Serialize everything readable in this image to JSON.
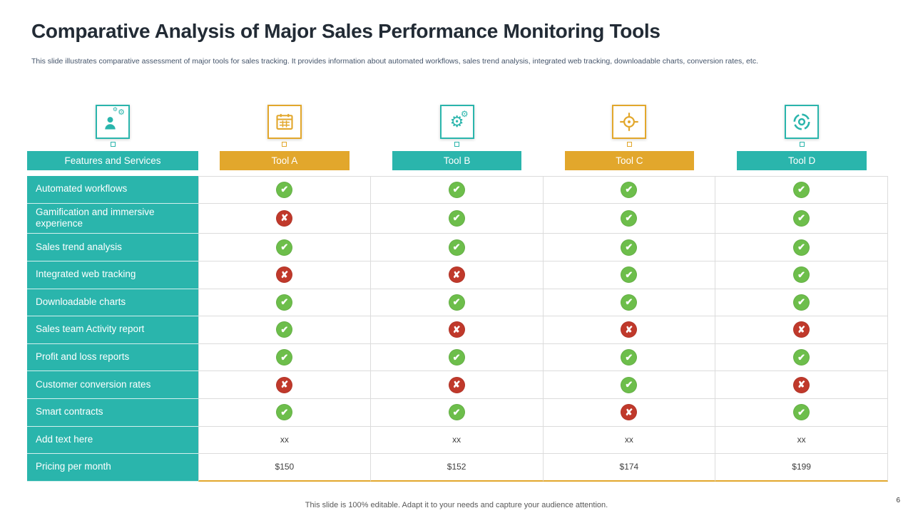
{
  "page": {
    "title": "Comparative Analysis of Major Sales Performance Monitoring Tools",
    "subtitle": "This slide illustrates comparative assessment of major tools for sales tracking. It provides information about automated workflows, sales trend analysis, integrated web tracking, downloadable charts, conversion rates, etc.",
    "footer": "This slide is 100% editable. Adapt it to your  needs and capture your audience attention.",
    "page_number": "6"
  },
  "colors": {
    "teal": "#2AB5AC",
    "gold": "#E2A72C",
    "green": "#6DBE4B",
    "red": "#C0392B"
  },
  "table": {
    "feature_header": "Features and Services",
    "feature_column_icon": "team-management-icon",
    "tools": [
      {
        "label": "Tool A",
        "accent": "#E2A72C",
        "icon": "calendar-icon"
      },
      {
        "label": "Tool B",
        "accent": "#2AB5AC",
        "icon": "gears-icon"
      },
      {
        "label": "Tool C",
        "accent": "#E2A72C",
        "icon": "target-icon"
      },
      {
        "label": "Tool D",
        "accent": "#2AB5AC",
        "icon": "crosshair-icon"
      }
    ],
    "rows": [
      {
        "feature": "Automated workflows",
        "values": [
          "yes",
          "yes",
          "yes",
          "yes"
        ]
      },
      {
        "feature": "Gamification and immersive experience",
        "values": [
          "no",
          "yes",
          "yes",
          "yes"
        ]
      },
      {
        "feature": "Sales trend analysis",
        "values": [
          "yes",
          "yes",
          "yes",
          "yes"
        ]
      },
      {
        "feature": "Integrated web tracking",
        "values": [
          "no",
          "no",
          "yes",
          "yes"
        ]
      },
      {
        "feature": "Downloadable charts",
        "values": [
          "yes",
          "yes",
          "yes",
          "yes"
        ]
      },
      {
        "feature": "Sales team Activity report",
        "values": [
          "yes",
          "no",
          "no",
          "no"
        ]
      },
      {
        "feature": "Profit and loss reports",
        "values": [
          "yes",
          "yes",
          "yes",
          "yes"
        ]
      },
      {
        "feature": "Customer conversion rates",
        "values": [
          "no",
          "no",
          "yes",
          "no"
        ]
      },
      {
        "feature": "Smart contracts",
        "values": [
          "yes",
          "yes",
          "no",
          "yes"
        ]
      },
      {
        "feature": "Add text here",
        "values": [
          "xx",
          "xx",
          "xx",
          "xx"
        ]
      },
      {
        "feature": "Pricing per month",
        "values": [
          "$150",
          "$152",
          "$174",
          "$199"
        ]
      }
    ]
  }
}
